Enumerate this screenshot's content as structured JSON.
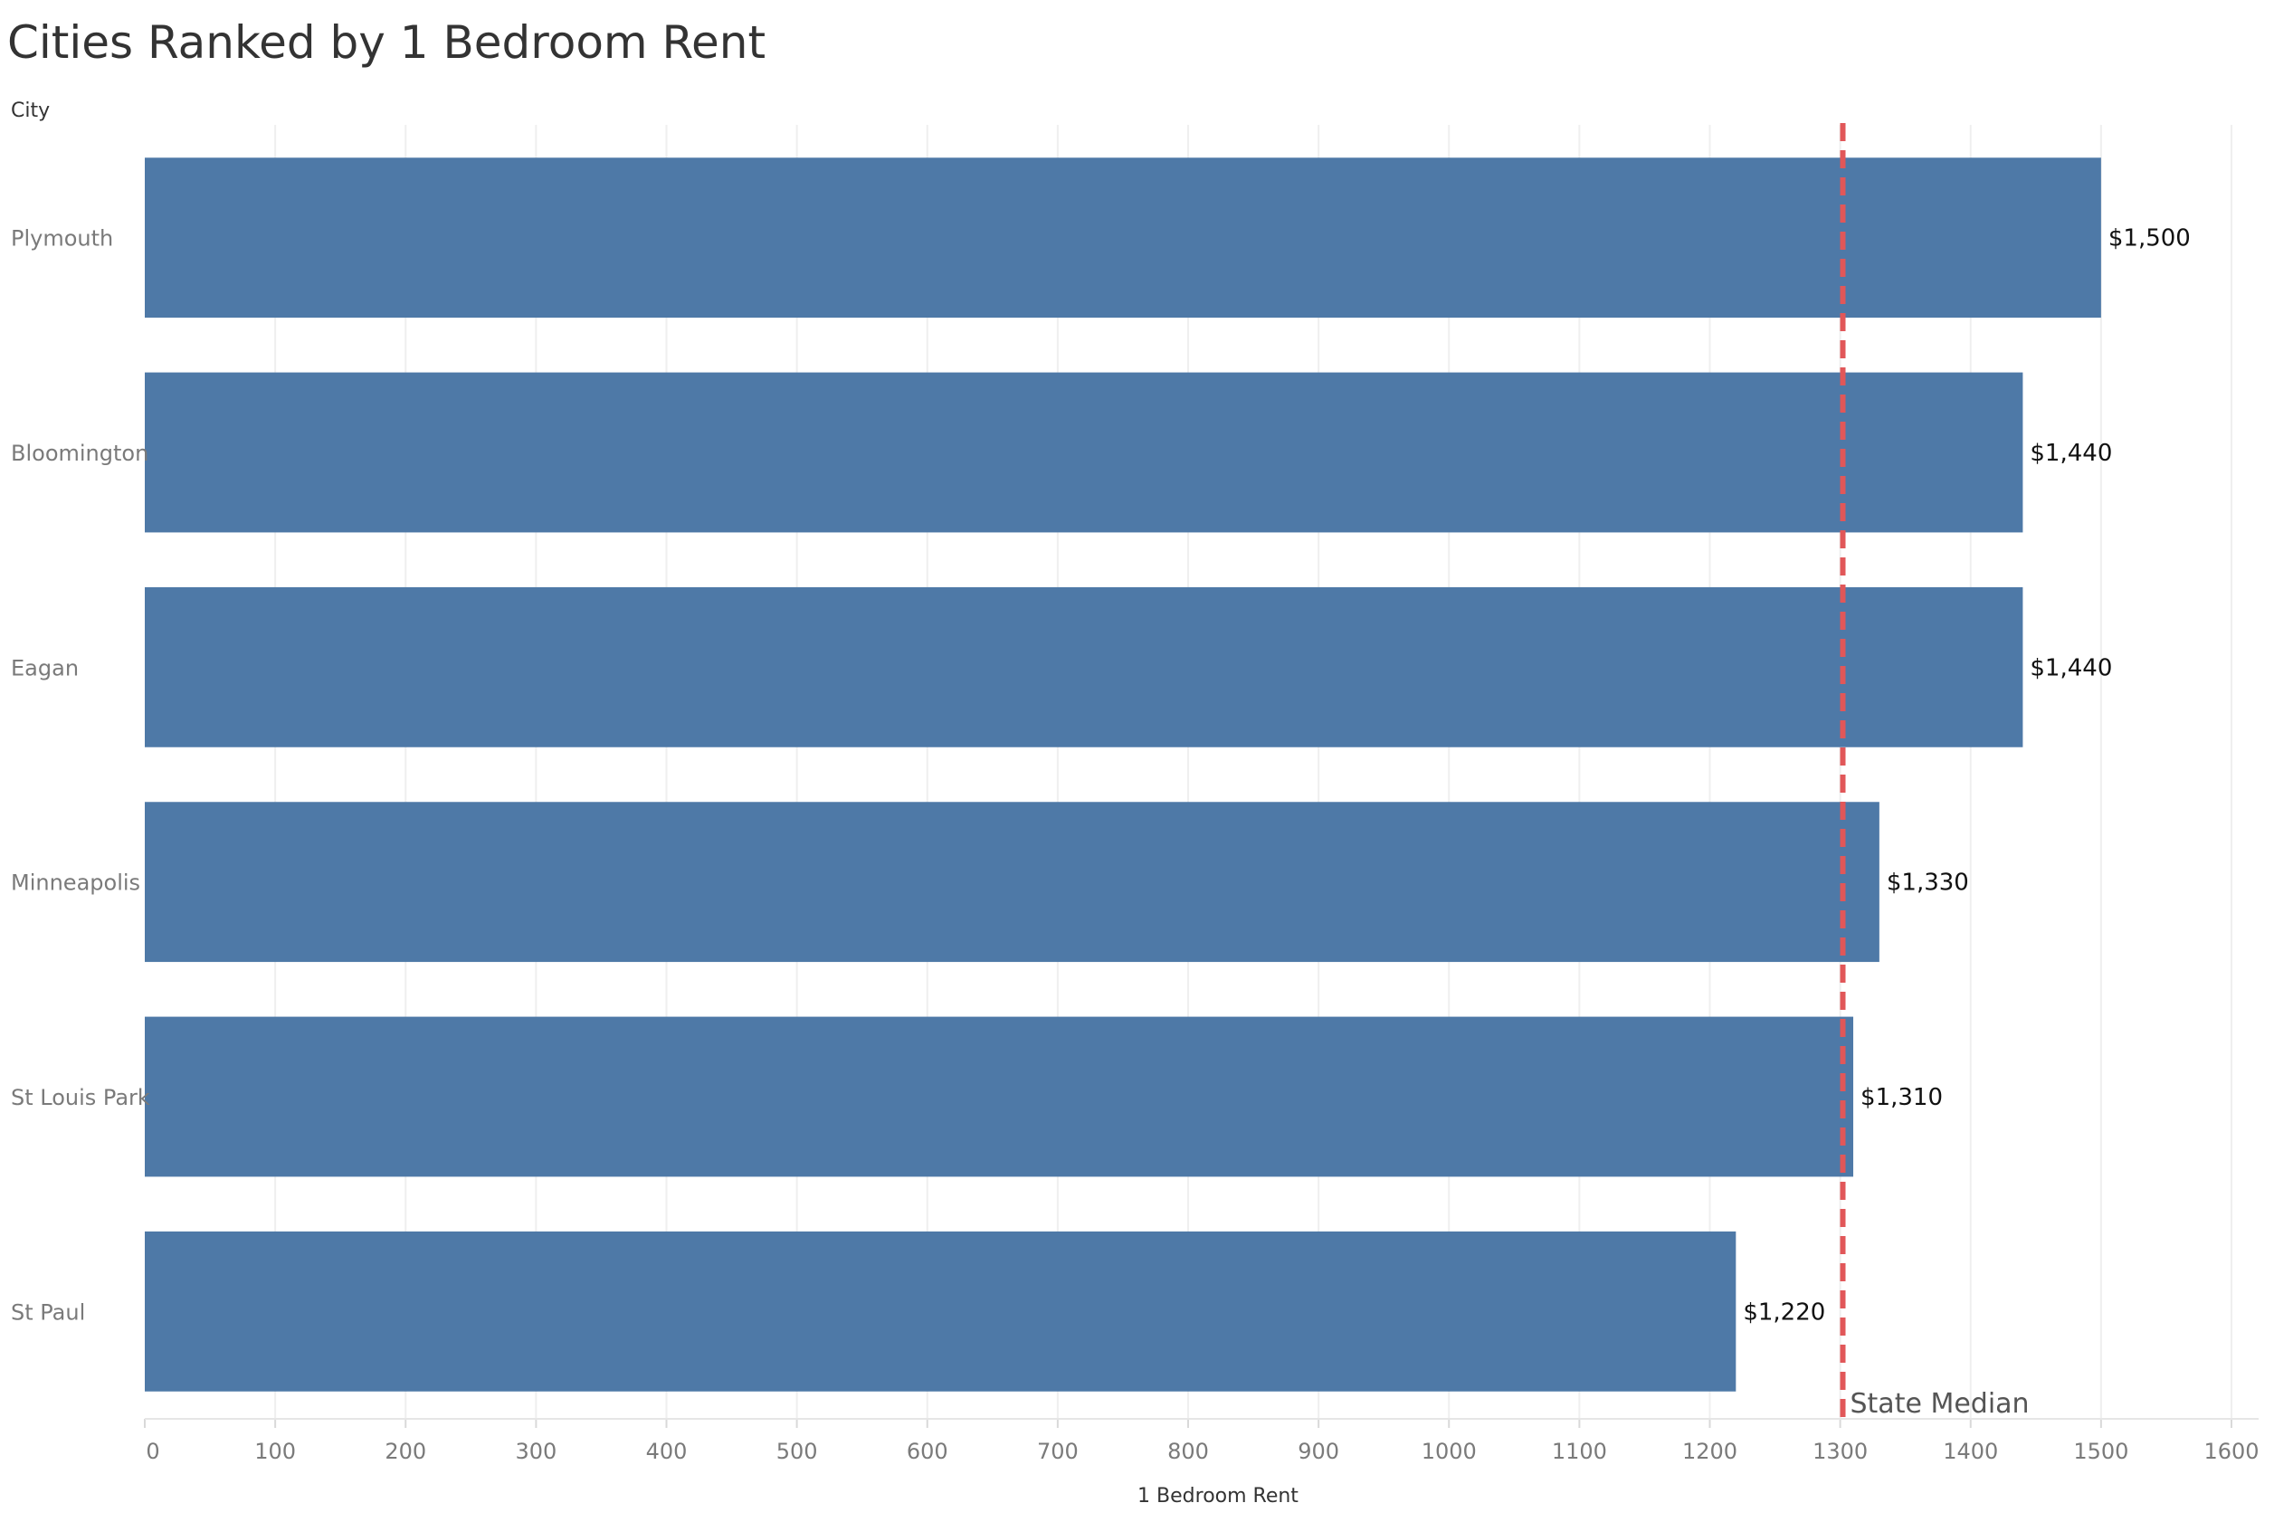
{
  "colors": {
    "bar": "#4e79a7",
    "reference_line": "#e15759",
    "grid": "#efefef",
    "text": "#333333",
    "muted_text": "#7a7a7a"
  },
  "chart_data": {
    "type": "bar",
    "orientation": "horizontal",
    "title": "Cities Ranked by 1 Bedroom Rent",
    "ylabel": "City",
    "xlabel": "1 Bedroom Rent",
    "categories": [
      "Plymouth",
      "Bloomington",
      "Eagan",
      "Minneapolis",
      "St Louis Park",
      "St Paul"
    ],
    "values": [
      1500,
      1440,
      1440,
      1330,
      1310,
      1220
    ],
    "value_labels": [
      "$1,500",
      "$1,440",
      "$1,440",
      "$1,330",
      "$1,310",
      "$1,220"
    ],
    "xlim": [
      0,
      1600
    ],
    "xticks": [
      0,
      100,
      200,
      300,
      400,
      500,
      600,
      700,
      800,
      900,
      1000,
      1100,
      1200,
      1300,
      1400,
      1500,
      1600
    ],
    "grid": "vertical",
    "reference_line": {
      "value": 1302,
      "label": "State Median",
      "style": "dashed"
    }
  }
}
